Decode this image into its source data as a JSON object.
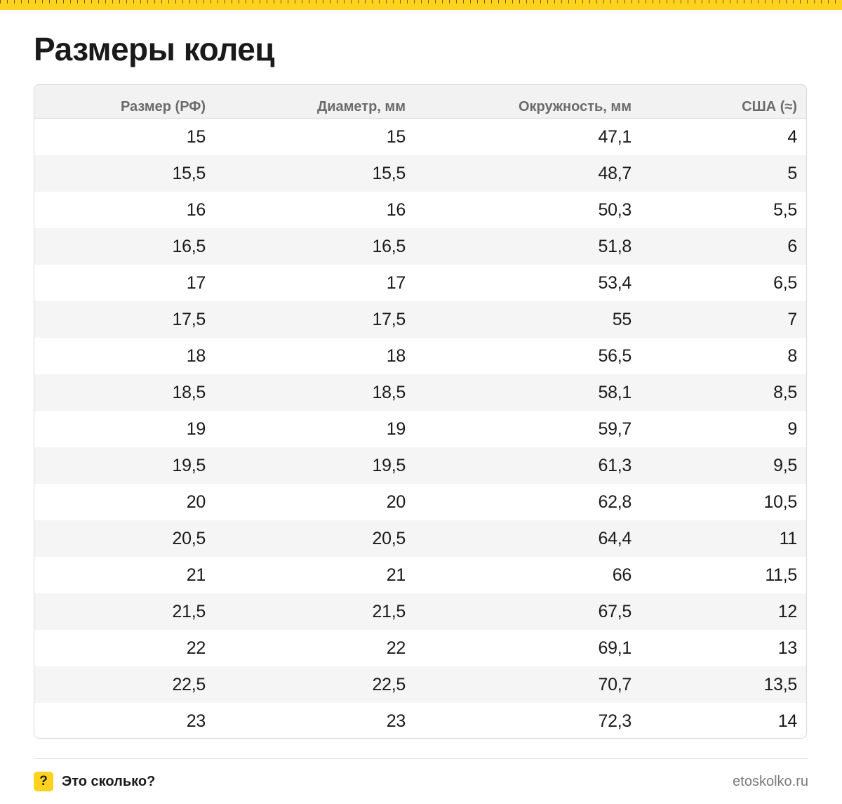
{
  "title": "Размеры колец",
  "table": {
    "headers": [
      "Размер (РФ)",
      "Диаметр, мм",
      "Окружность, мм",
      "США (≈)"
    ],
    "rows": [
      [
        "15",
        "15",
        "47,1",
        "4"
      ],
      [
        "15,5",
        "15,5",
        "48,7",
        "5"
      ],
      [
        "16",
        "16",
        "50,3",
        "5,5"
      ],
      [
        "16,5",
        "16,5",
        "51,8",
        "6"
      ],
      [
        "17",
        "17",
        "53,4",
        "6,5"
      ],
      [
        "17,5",
        "17,5",
        "55",
        "7"
      ],
      [
        "18",
        "18",
        "56,5",
        "8"
      ],
      [
        "18,5",
        "18,5",
        "58,1",
        "8,5"
      ],
      [
        "19",
        "19",
        "59,7",
        "9"
      ],
      [
        "19,5",
        "19,5",
        "61,3",
        "9,5"
      ],
      [
        "20",
        "20",
        "62,8",
        "10,5"
      ],
      [
        "20,5",
        "20,5",
        "64,4",
        "11"
      ],
      [
        "21",
        "21",
        "66",
        "11,5"
      ],
      [
        "21,5",
        "21,5",
        "67,5",
        "12"
      ],
      [
        "22",
        "22",
        "69,1",
        "13"
      ],
      [
        "22,5",
        "22,5",
        "70,7",
        "13,5"
      ],
      [
        "23",
        "23",
        "72,3",
        "14"
      ]
    ]
  },
  "footer": {
    "badge": "?",
    "brand": "Это сколько?",
    "site": "etoskolko.ru"
  },
  "colors": {
    "accent": "#ffd21e",
    "row_stripe": "#f5f5f5",
    "header_bg": "#f2f2f2"
  }
}
